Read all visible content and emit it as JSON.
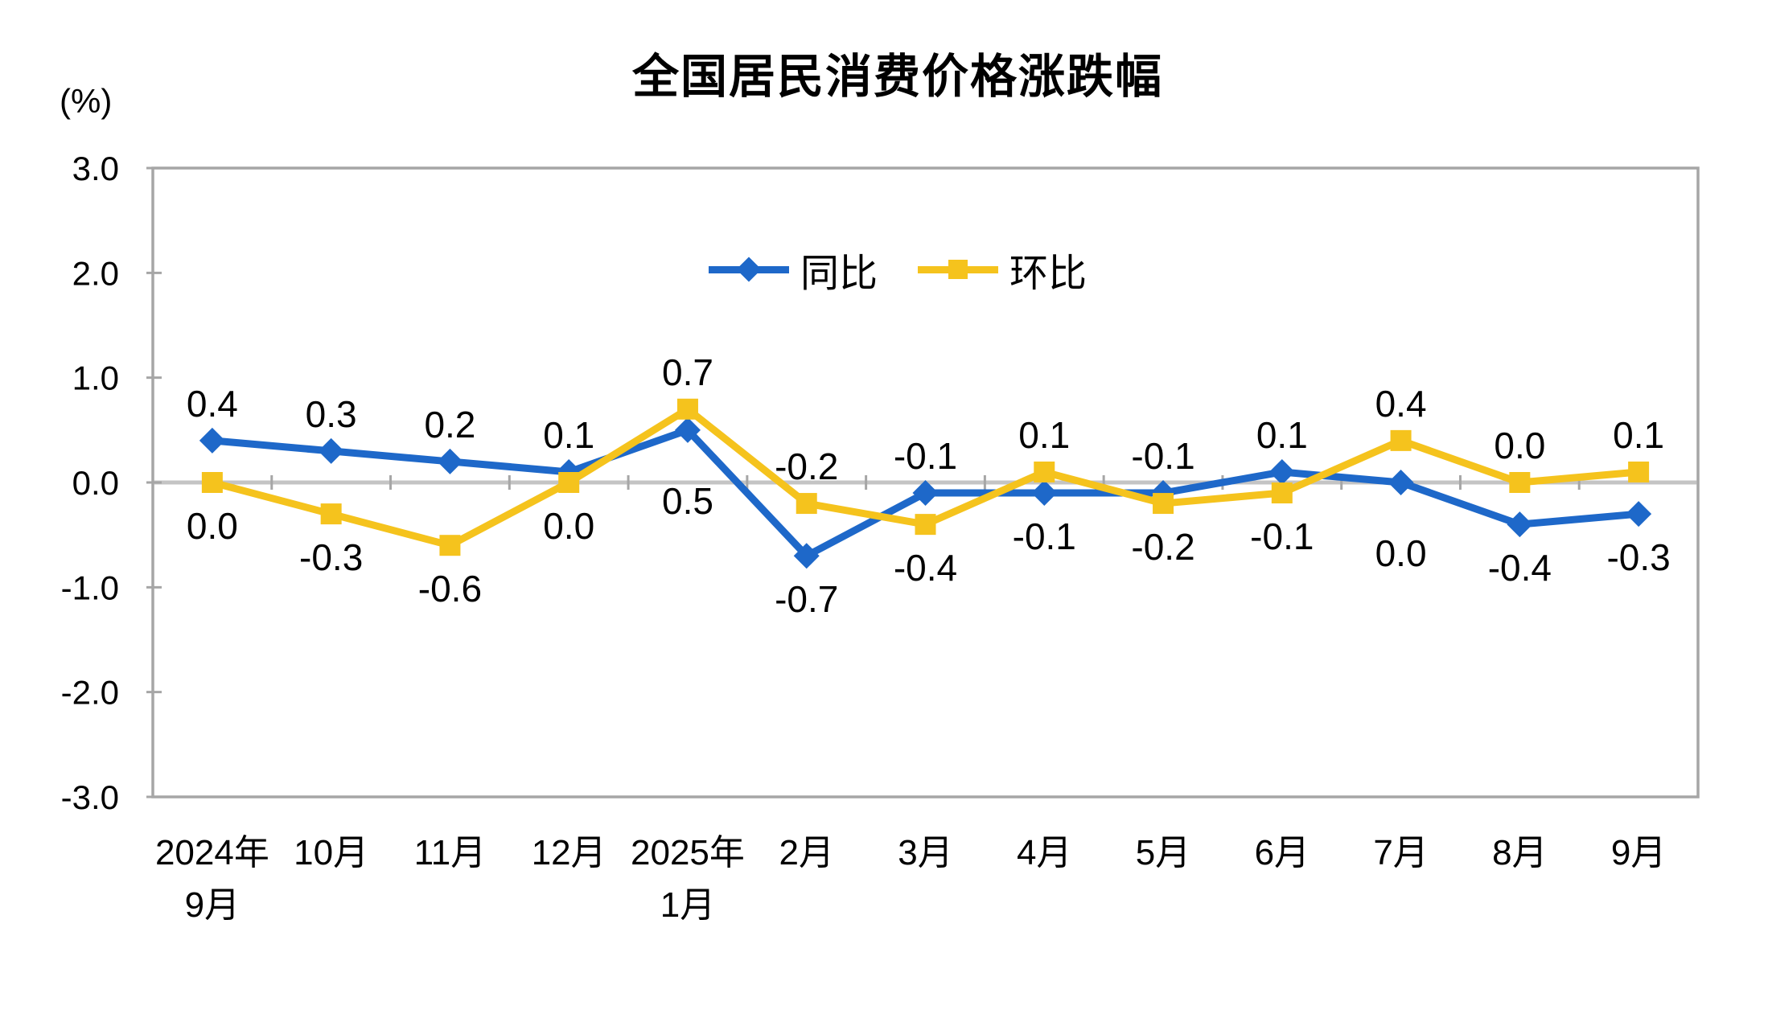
{
  "header": {
    "title": "全国居民消费价格涨跌幅",
    "unit_label": "(%)"
  },
  "chart_data": {
    "type": "line",
    "title": "全国居民消费价格涨跌幅",
    "unit": "(%)",
    "categories": [
      "2024年\n9月",
      "10月",
      "11月",
      "12月",
      "2025年\n1月",
      "2月",
      "3月",
      "4月",
      "5月",
      "6月",
      "7月",
      "8月",
      "9月"
    ],
    "series": [
      {
        "key": "yoy",
        "name": "同比",
        "marker": "diamond",
        "color": "#1E68C9",
        "values": [
          0.4,
          0.3,
          0.2,
          0.1,
          0.5,
          -0.7,
          -0.1,
          -0.1,
          -0.1,
          0.1,
          0.0,
          -0.4,
          -0.3
        ],
        "label_side": [
          "above",
          "above",
          "above",
          "above",
          "belowfar",
          "below",
          "above",
          "below",
          "above",
          "above",
          "belowfar",
          "below",
          "below"
        ]
      },
      {
        "key": "mom",
        "name": "环比",
        "marker": "square",
        "color": "#F5C31D",
        "values": [
          0.0,
          -0.3,
          -0.6,
          0.0,
          0.7,
          -0.2,
          -0.4,
          0.1,
          -0.2,
          -0.1,
          0.4,
          0.0,
          0.1
        ],
        "label_side": [
          "below",
          "below",
          "below",
          "below",
          "above",
          "above",
          "below",
          "above",
          "below",
          "below",
          "above",
          "above",
          "above"
        ]
      }
    ],
    "ylim": [
      -3.0,
      3.0
    ],
    "yticks": [
      "3.0",
      "2.0",
      "1.0",
      "0.0",
      "-1.0",
      "-2.0",
      "-3.0"
    ],
    "grid": false,
    "legend_position": "top-center",
    "colors": {
      "plot_border": "#A6A6A6",
      "zero_line": "#C4C4C4",
      "tick": "#A6A6A6",
      "text": "#000000",
      "background": "#FFFFFF"
    }
  }
}
